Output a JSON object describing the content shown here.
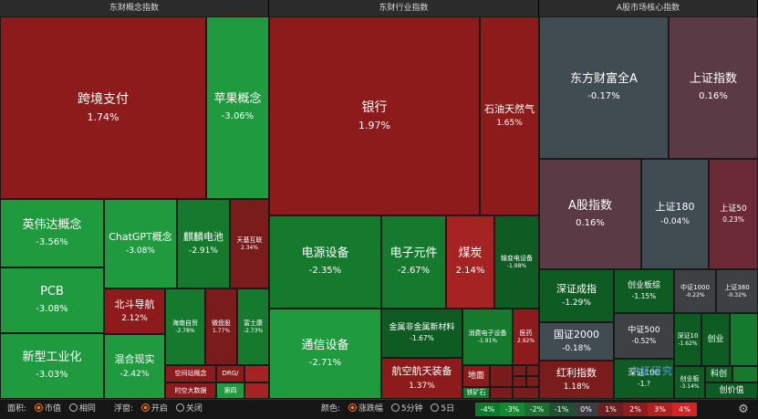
{
  "headers": {
    "concept": "东财概念指数",
    "industry": "东财行业指数",
    "market": "A股市场核心指数"
  },
  "concept": [
    {
      "name": "跨境支付",
      "pct": "1.74%"
    },
    {
      "name": "苹果概念",
      "pct": "-3.06%"
    },
    {
      "name": "英伟达概念",
      "pct": "-3.56%"
    },
    {
      "name": "ChatGPT概念",
      "pct": "-3.08%"
    },
    {
      "name": "麒麟电池",
      "pct": "-2.91%"
    },
    {
      "name": "天基互联",
      "pct": "2.34%"
    },
    {
      "name": "PCB",
      "pct": "-3.08%"
    },
    {
      "name": "北斗导航",
      "pct": "2.12%"
    },
    {
      "name": "海南自贸",
      "pct": "-2.78%"
    },
    {
      "name": "微盘股",
      "pct": "1.77%"
    },
    {
      "name": "富士康",
      "pct": "-2.73%"
    },
    {
      "name": "新型工业化",
      "pct": "-3.03%"
    },
    {
      "name": "混合现实",
      "pct": "-2.42%"
    },
    {
      "name": "空间站概念"
    },
    {
      "name": "DRG/"
    },
    {
      "name": "时空大数据"
    },
    {
      "name": "第四"
    }
  ],
  "industry": [
    {
      "name": "银行",
      "pct": "1.97%"
    },
    {
      "name": "石油天然气",
      "pct": "1.65%"
    },
    {
      "name": "电源设备",
      "pct": "-2.35%"
    },
    {
      "name": "电子元件",
      "pct": "-2.67%"
    },
    {
      "name": "煤炭",
      "pct": "2.14%"
    },
    {
      "name": "输变电设备",
      "pct": "-1.98%"
    },
    {
      "name": "通信设备",
      "pct": "-2.71%"
    },
    {
      "name": "金属非金属新材料",
      "pct": "-1.67%"
    },
    {
      "name": "消费电子设备",
      "pct": "-1.91%"
    },
    {
      "name": "医药",
      "pct": "2.92%"
    },
    {
      "name": "航空航天装备",
      "pct": "1.37%"
    },
    {
      "name": "地面"
    },
    {
      "name": "铁矿石"
    }
  ],
  "market": [
    {
      "name": "东方财富全A",
      "pct": "-0.17%"
    },
    {
      "name": "上证指数",
      "pct": "0.16%"
    },
    {
      "name": "A股指数",
      "pct": "0.16%"
    },
    {
      "name": "上证180",
      "pct": "-0.04%"
    },
    {
      "name": "上证50",
      "pct": "0.23%"
    },
    {
      "name": "深证成指",
      "pct": "-1.29%"
    },
    {
      "name": "创业板综",
      "pct": "-1.15%"
    },
    {
      "name": "中证1000",
      "pct": "-0.22%"
    },
    {
      "name": "上证380",
      "pct": "-0.32%"
    },
    {
      "name": "国证2000",
      "pct": "-0.18%"
    },
    {
      "name": "中证500",
      "pct": "-0.52%"
    },
    {
      "name": "深证10",
      "pct": "-1.62%"
    },
    {
      "name": "创业"
    },
    {
      "name": "红利指数",
      "pct": "1.18%"
    },
    {
      "name": "深证100",
      "pct": "-1.?"
    },
    {
      "name": "创业板",
      "pct": "-3.14%"
    },
    {
      "name": "科创"
    },
    {
      "name": "创价值"
    }
  ],
  "controls": {
    "area_label": "面积:",
    "area_opt1": "市值",
    "area_opt2": "相同",
    "float_label": "浮窗:",
    "float_opt1": "开启",
    "float_opt2": "关闭",
    "color_label": "颜色:",
    "color_opt1": "涨跌幅",
    "color_opt2": "5分钟",
    "color_opt3": "5日"
  },
  "legend": [
    {
      "label": "-4%",
      "color": "#0f7a2c"
    },
    {
      "label": "-3%",
      "color": "#14892f"
    },
    {
      "label": "-2%",
      "color": "#1c6d2f"
    },
    {
      "label": "-1%",
      "color": "#1e5130"
    },
    {
      "label": "0%",
      "color": "#3a3e44"
    },
    {
      "label": "1%",
      "color": "#6b1f1f"
    },
    {
      "label": "2%",
      "color": "#8d1d1d"
    },
    {
      "label": "3%",
      "color": "#b12020"
    },
    {
      "label": "4%",
      "color": "#d32525"
    }
  ],
  "watermark": "中证研究"
}
